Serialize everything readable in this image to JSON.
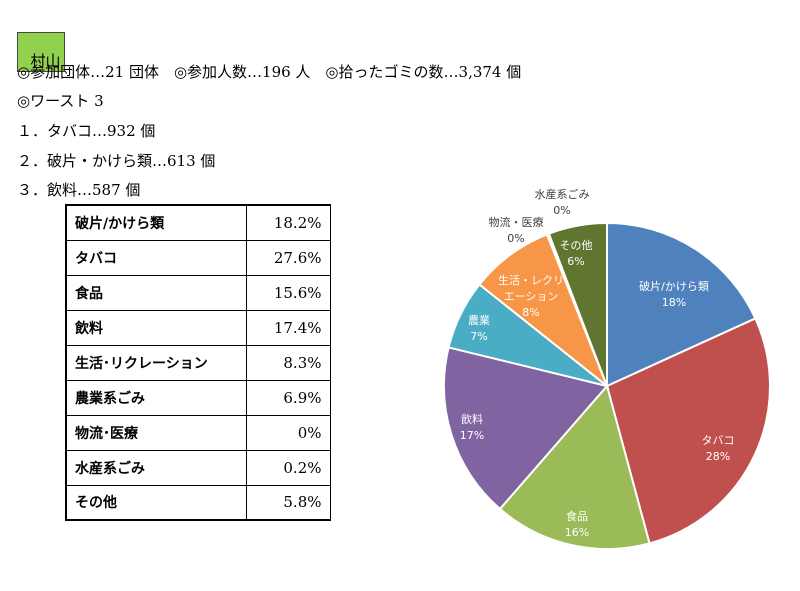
{
  "header": {
    "title": "村山",
    "title_bg": "#92d050",
    "summary": "◎参加団体…21 団体　◎参加人数…196 人　◎拾ったゴミの数…3,374 個",
    "worst_heading": "◎ワースト 3",
    "worst": [
      "１．タバコ…932 個",
      "２．破片・かけら類…613 個",
      "３．飲料…587 個"
    ]
  },
  "table": {
    "rows": [
      {
        "name": "破片/かけら類",
        "value": "18.2%"
      },
      {
        "name": "タバコ",
        "value": "27.6%"
      },
      {
        "name": "食品",
        "value": "15.6%"
      },
      {
        "name": "飲料",
        "value": "17.4%"
      },
      {
        "name": "生活･リクレーション",
        "value": "8.3%"
      },
      {
        "name": "農業系ごみ",
        "value": "6.9%"
      },
      {
        "name": "物流･医療",
        "value": "0%"
      },
      {
        "name": "水産系ごみ",
        "value": "0.2%"
      },
      {
        "name": "その他",
        "value": "5.8%"
      }
    ]
  },
  "chart_data": {
    "type": "pie",
    "start_angle_deg": 0,
    "direction": "clockwise",
    "slices": [
      {
        "name": "破片/かけら類",
        "value": 18.2,
        "label": "18%",
        "color": "#4f81bd",
        "label_lines": [
          "破片/かけら類"
        ],
        "label_color": "#ffffff"
      },
      {
        "name": "タバコ",
        "value": 27.6,
        "label": "28%",
        "color": "#c0504d",
        "label_lines": [
          "タバコ"
        ],
        "label_color": "#ffffff"
      },
      {
        "name": "食品",
        "value": 15.6,
        "label": "16%",
        "color": "#9bbb59",
        "label_lines": [
          "食品"
        ],
        "label_color": "#ffffff"
      },
      {
        "name": "飲料",
        "value": 17.4,
        "label": "17%",
        "color": "#8064a2",
        "label_lines": [
          "飲料"
        ],
        "label_color": "#ffffff"
      },
      {
        "name": "農業",
        "value": 6.9,
        "label": "7%",
        "color": "#4bacc6",
        "label_lines": [
          "農業"
        ],
        "label_color": "#ffffff"
      },
      {
        "name": "生活・レクリエーション",
        "value": 8.3,
        "label": "8%",
        "color": "#f79646",
        "label_lines": [
          "生活・レクリ",
          "エーション"
        ],
        "label_color": "#ffffff"
      },
      {
        "name": "物流・医療",
        "value": 0,
        "label": "0%",
        "color": "#2c4d75",
        "label_lines": [
          "物流・医療"
        ],
        "label_color": "#404040"
      },
      {
        "name": "水産系ごみ",
        "value": 0.2,
        "label": "0%",
        "color": "#772c2a",
        "label_lines": [
          "水産系ごみ"
        ],
        "label_color": "#404040"
      },
      {
        "name": "その他",
        "value": 5.8,
        "label": "6%",
        "color": "#5f7530",
        "label_lines": [
          "その他"
        ],
        "label_color": "#ffffff"
      }
    ]
  }
}
